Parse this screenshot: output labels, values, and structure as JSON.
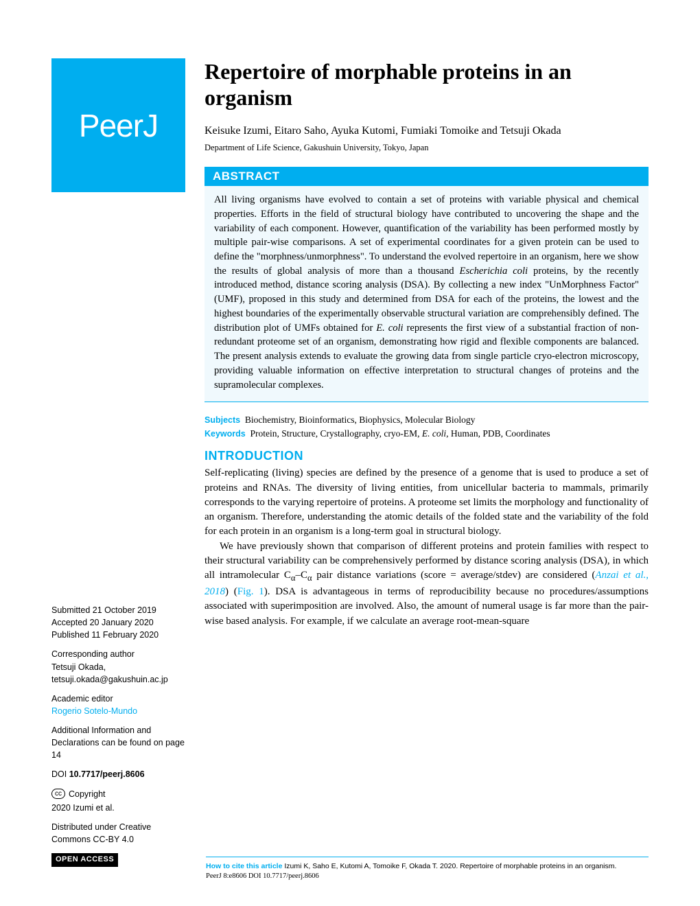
{
  "logo": {
    "text": "PeerJ"
  },
  "title": "Repertoire of morphable proteins in an organism",
  "authors": "Keisuke Izumi, Eitaro Saho, Ayuka Kutomi, Fumiaki Tomoike and Tetsuji Okada",
  "affiliation": "Department of Life Science, Gakushuin University, Tokyo, Japan",
  "abstract": {
    "heading": "ABSTRACT",
    "text": "All living organisms have evolved to contain a set of proteins with variable physical and chemical properties. Efforts in the field of structural biology have contributed to uncovering the shape and the variability of each component. However, quantification of the variability has been performed mostly by multiple pair-wise comparisons. A set of experimental coordinates for a given protein can be used to define the \"morphness/unmorphness\". To understand the evolved repertoire in an organism, here we show the results of global analysis of more than a thousand Escherichia coli proteins, by the recently introduced method, distance scoring analysis (DSA). By collecting a new index \"UnMorphness Factor\" (UMF), proposed in this study and determined from DSA for each of the proteins, the lowest and the highest boundaries of the experimentally observable structural variation are comprehensibly defined. The distribution plot of UMFs obtained for E. coli represents the first view of a substantial fraction of non-redundant proteome set of an organism, demonstrating how rigid and flexible components are balanced. The present analysis extends to evaluate the growing data from single particle cryo-electron microscopy, providing valuable information on effective interpretation to structural changes of proteins and the supramolecular complexes."
  },
  "subjects": {
    "label": "Subjects",
    "text": "Biochemistry, Bioinformatics, Biophysics, Molecular Biology"
  },
  "keywords": {
    "label": "Keywords",
    "text": "Protein, Structure, Crystallography, cryo-EM, E. coli, Human, PDB, Coordinates"
  },
  "introduction": {
    "heading": "INTRODUCTION",
    "para1": "Self-replicating (living) species are defined by the presence of a genome that is used to produce a set of proteins and RNAs. The diversity of living entities, from unicellular bacteria to mammals, primarily corresponds to the varying repertoire of proteins. A proteome set limits the morphology and functionality of an organism. Therefore, understanding the atomic details of the folded state and the variability of the fold for each protein in an organism is a long-term goal in structural biology.",
    "para2_a": "We have previously shown that comparison of different proteins and protein families with respect to their structural variability can be comprehensively performed by distance scoring analysis (DSA), in which all intramolecular C",
    "para2_b": "–C",
    "para2_c": " pair distance variations (score = average/stdev) are considered (",
    "cite": "Anzai et al., 2018",
    "para2_d": ") (",
    "fig": "Fig. 1",
    "para2_e": "). DSA is advantageous in terms of reproducibility because no procedures/assumptions associated with superimposition are involved. Also, the amount of numeral usage is far more than the pair-wise based analysis. For example, if we calculate an average root-mean-square"
  },
  "metadata": {
    "submitted": {
      "label": "Submitted",
      "value": "21 October 2019"
    },
    "accepted": {
      "label": "Accepted",
      "value": "20 January 2020"
    },
    "published": {
      "label": "Published",
      "value": "11 February 2020"
    },
    "corresponding": {
      "label": "Corresponding author",
      "name": "Tetsuji Okada,",
      "email": "tetsuji.okada@gakushuin.ac.jp"
    },
    "editor": {
      "label": "Academic editor",
      "name": "Rogerio Sotelo-Mundo"
    },
    "additional": "Additional Information and Declarations can be found on page 14",
    "doi": {
      "label": "DOI",
      "value": "10.7717/peerj.8606"
    },
    "copyright": {
      "label": "Copyright",
      "value": "2020 Izumi et al."
    },
    "distributed": "Distributed under Creative Commons CC-BY 4.0",
    "open_access": "OPEN ACCESS"
  },
  "footer": {
    "cite_label": "How to cite this article",
    "cite_text": " Izumi K, Saho E, Kutomi A, Tomoike F, Okada T. 2020. Repertoire of morphable proteins in an organism.",
    "line2": "PeerJ 8:e8606 DOI 10.7717/peerj.8606"
  },
  "colors": {
    "brand": "#00aeef",
    "abstract_bg": "#f0f9fd",
    "text": "#000000",
    "white": "#ffffff"
  }
}
